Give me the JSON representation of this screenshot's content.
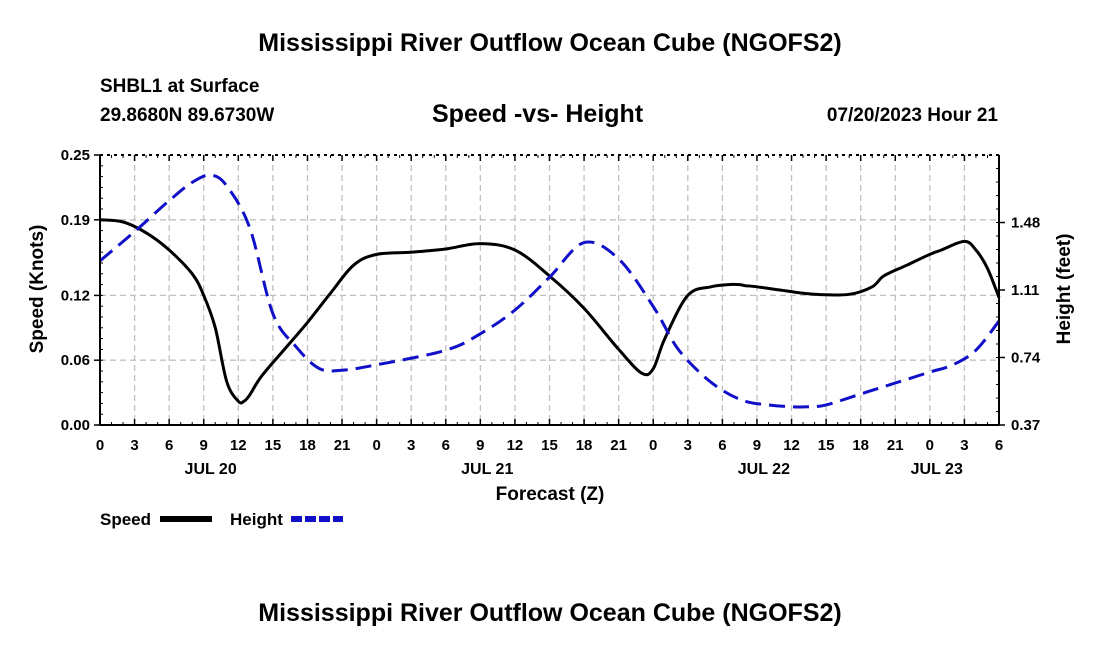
{
  "page": {
    "title": "Mississippi River Outflow Ocean Cube (NGOFS2)",
    "footer_title": "Mississippi River Outflow Ocean Cube (NGOFS2)",
    "station": "SHBL1 at Surface",
    "location": "29.8680N  89.6730W",
    "subtitle": "Speed -vs- Height",
    "run_time": "07/20/2023 Hour 21"
  },
  "legend": {
    "speed_label": "Speed",
    "height_label": "Height"
  },
  "colors": {
    "speed": "#000000",
    "height": "#1010c8",
    "grid": "#c0c0c0"
  },
  "chart_data": {
    "type": "line",
    "title": "Speed -vs- Height",
    "xlabel": "Forecast (Z)",
    "ylabel": "Speed (Knots)",
    "y2label": "Height (feet)",
    "xlim": [
      0,
      78
    ],
    "ylim": [
      0,
      0.25
    ],
    "y2lim": [
      0.37,
      1.85
    ],
    "x_ticks": [
      0,
      3,
      6,
      9,
      12,
      15,
      18,
      21,
      24,
      27,
      30,
      33,
      36,
      39,
      42,
      45,
      48,
      51,
      54,
      57,
      60,
      63,
      66,
      69,
      72,
      75,
      78
    ],
    "x_tick_labels": [
      "0",
      "3",
      "6",
      "9",
      "12",
      "15",
      "18",
      "21",
      "0",
      "3",
      "6",
      "9",
      "12",
      "15",
      "18",
      "21",
      "0",
      "3",
      "6",
      "9",
      "12",
      "15",
      "18",
      "21",
      "0",
      "3",
      "6"
    ],
    "y_ticks": [
      0,
      0.06,
      0.12,
      0.19,
      0.25
    ],
    "y_tick_labels": [
      "0.00",
      "0.06",
      "0.12",
      "0.19",
      "0.25"
    ],
    "y2_ticks": [
      0.37,
      0.74,
      1.11,
      1.48
    ],
    "y2_tick_labels": [
      "0.37",
      "0.74",
      "1.11",
      "1.48"
    ],
    "date_labels": [
      {
        "x": 9.6,
        "label": "JUL 20"
      },
      {
        "x": 33.6,
        "label": "JUL 21"
      },
      {
        "x": 57.6,
        "label": "JUL 22"
      },
      {
        "x": 72.6,
        "label": "JUL 23"
      }
    ],
    "grid": true,
    "series": [
      {
        "name": "Speed",
        "axis": "left",
        "style": "solid",
        "x": [
          0,
          2,
          4,
          6,
          8,
          9,
          10,
          11,
          12,
          12.5,
          13,
          14,
          16,
          18,
          20,
          22,
          24,
          27,
          30,
          33,
          36,
          39,
          42,
          45,
          47,
          48,
          49,
          51,
          53,
          54.5,
          55.5,
          56,
          57,
          59,
          62,
          65,
          67,
          68,
          70,
          72,
          73,
          75,
          76,
          77,
          78
        ],
        "y": [
          0.19,
          0.188,
          0.178,
          0.162,
          0.14,
          0.12,
          0.09,
          0.04,
          0.022,
          0.022,
          0.028,
          0.045,
          0.07,
          0.095,
          0.122,
          0.148,
          0.158,
          0.16,
          0.163,
          0.168,
          0.162,
          0.138,
          0.108,
          0.07,
          0.048,
          0.052,
          0.08,
          0.12,
          0.128,
          0.13,
          0.13,
          0.129,
          0.128,
          0.125,
          0.121,
          0.121,
          0.128,
          0.138,
          0.148,
          0.158,
          0.162,
          0.17,
          0.162,
          0.145,
          0.118
        ]
      },
      {
        "name": "Height",
        "axis": "right",
        "style": "dashed",
        "x": [
          0,
          3,
          6,
          8,
          9.6,
          11,
          13,
          15,
          17,
          19,
          21,
          24,
          30,
          33,
          36,
          39,
          42,
          45,
          48,
          50,
          52,
          54,
          56,
          58,
          60,
          61.5,
          63,
          66,
          69,
          72,
          74,
          76,
          78
        ],
        "y": [
          1.27,
          1.43,
          1.6,
          1.7,
          1.74,
          1.68,
          1.45,
          0.98,
          0.8,
          0.68,
          0.67,
          0.7,
          0.78,
          0.87,
          1.0,
          1.18,
          1.37,
          1.28,
          1.02,
          0.8,
          0.66,
          0.56,
          0.5,
          0.48,
          0.47,
          0.47,
          0.48,
          0.54,
          0.6,
          0.66,
          0.7,
          0.78,
          0.94
        ]
      }
    ]
  }
}
